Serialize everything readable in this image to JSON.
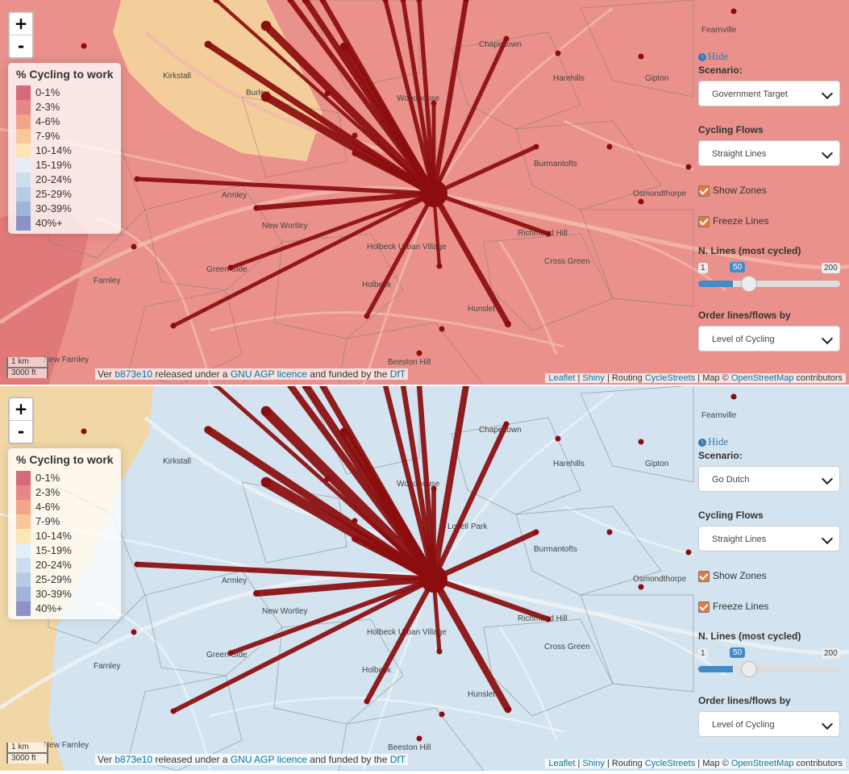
{
  "panels": [
    {
      "id": "government-target",
      "zone_fill": "#e9918a",
      "edge_fill": "#f4d29b",
      "map_labels": [
        "Kirkstall",
        "Burley",
        "Chapeltown",
        "Harehills",
        "Gipton",
        "Woodhouse",
        "Burmantofts",
        "Armley",
        "Osmondthorpe",
        "New Wortley",
        "Holbeck Urban Village",
        "Richmond Hill",
        "Green Side",
        "Holbeck",
        "Cross Green",
        "Farnley",
        "Hunslet",
        "Beeston Hill",
        "New Farnley",
        "Fearnville"
      ],
      "controls": {
        "scenario": "Government Target",
        "flows": "Straight Lines",
        "show_zones": true,
        "freeze_lines": true,
        "n_lines": 50,
        "order": "Level of Cycling"
      }
    },
    {
      "id": "go-dutch",
      "zone_fill": "#d3e3ef",
      "edge_fill": "#f2d6a0",
      "map_labels": [
        "Kirkstall",
        "Chapeltown",
        "Harehills",
        "Gipton",
        "Woodhouse",
        "Burmantofts",
        "Armley",
        "Osmondthorpe",
        "New Wortley",
        "Holbeck Urban Village",
        "Richmond Hill",
        "Green Side",
        "Holbeck",
        "Cross Green",
        "Farnley",
        "Hunslet",
        "Beeston Hill",
        "New Farnley",
        "Fearnville",
        "Lovell Park"
      ],
      "controls": {
        "scenario": "Go Dutch",
        "flows": "Straight Lines",
        "show_zones": true,
        "freeze_lines": true,
        "n_lines": 50,
        "order": "Level of Cycling"
      }
    }
  ],
  "zoom": {
    "in": "+",
    "out": "-"
  },
  "legend": {
    "title": "% Cycling to work",
    "items": [
      {
        "label": "0-1%",
        "color": "#d56a7c"
      },
      {
        "label": "2-3%",
        "color": "#e78686"
      },
      {
        "label": "4-6%",
        "color": "#f3a48a"
      },
      {
        "label": "7-9%",
        "color": "#f8c79a"
      },
      {
        "label": "10-14%",
        "color": "#fbe6b4"
      },
      {
        "label": "15-19%",
        "color": "#e4eef6"
      },
      {
        "label": "20-24%",
        "color": "#cddfee"
      },
      {
        "label": "25-29%",
        "color": "#b5cce4"
      },
      {
        "label": "30-39%",
        "color": "#9fb4d8"
      },
      {
        "label": "40%+",
        "color": "#8e91c8"
      }
    ]
  },
  "control_labels": {
    "hide": "Hide",
    "scenario": "Scenario:",
    "cycling_flows": "Cycling Flows",
    "show_zones": "Show Zones",
    "freeze_lines": "Freeze Lines",
    "n_lines": "N. Lines (most cycled)",
    "range_min": "1",
    "range_max": "200",
    "order": "Order lines/flows by"
  },
  "scale": {
    "metric": "1 km",
    "imperial": "3000 ft"
  },
  "footer": {
    "ver": "Ver ",
    "commit": "b873e10",
    "released": " released under a ",
    "licence": "GNU AGP licence",
    "funded": " and funded by the ",
    "dft": "DfT",
    "leaflet": "Leaflet",
    "sep1": " | ",
    "shiny": "Shiny",
    "routing": " | Routing ",
    "cyclestreets": "CycleStreets",
    "map": " | Map © ",
    "osm": "OpenStreetMap",
    "contrib": " contributors"
  },
  "flow_color": "#8b0d0d"
}
